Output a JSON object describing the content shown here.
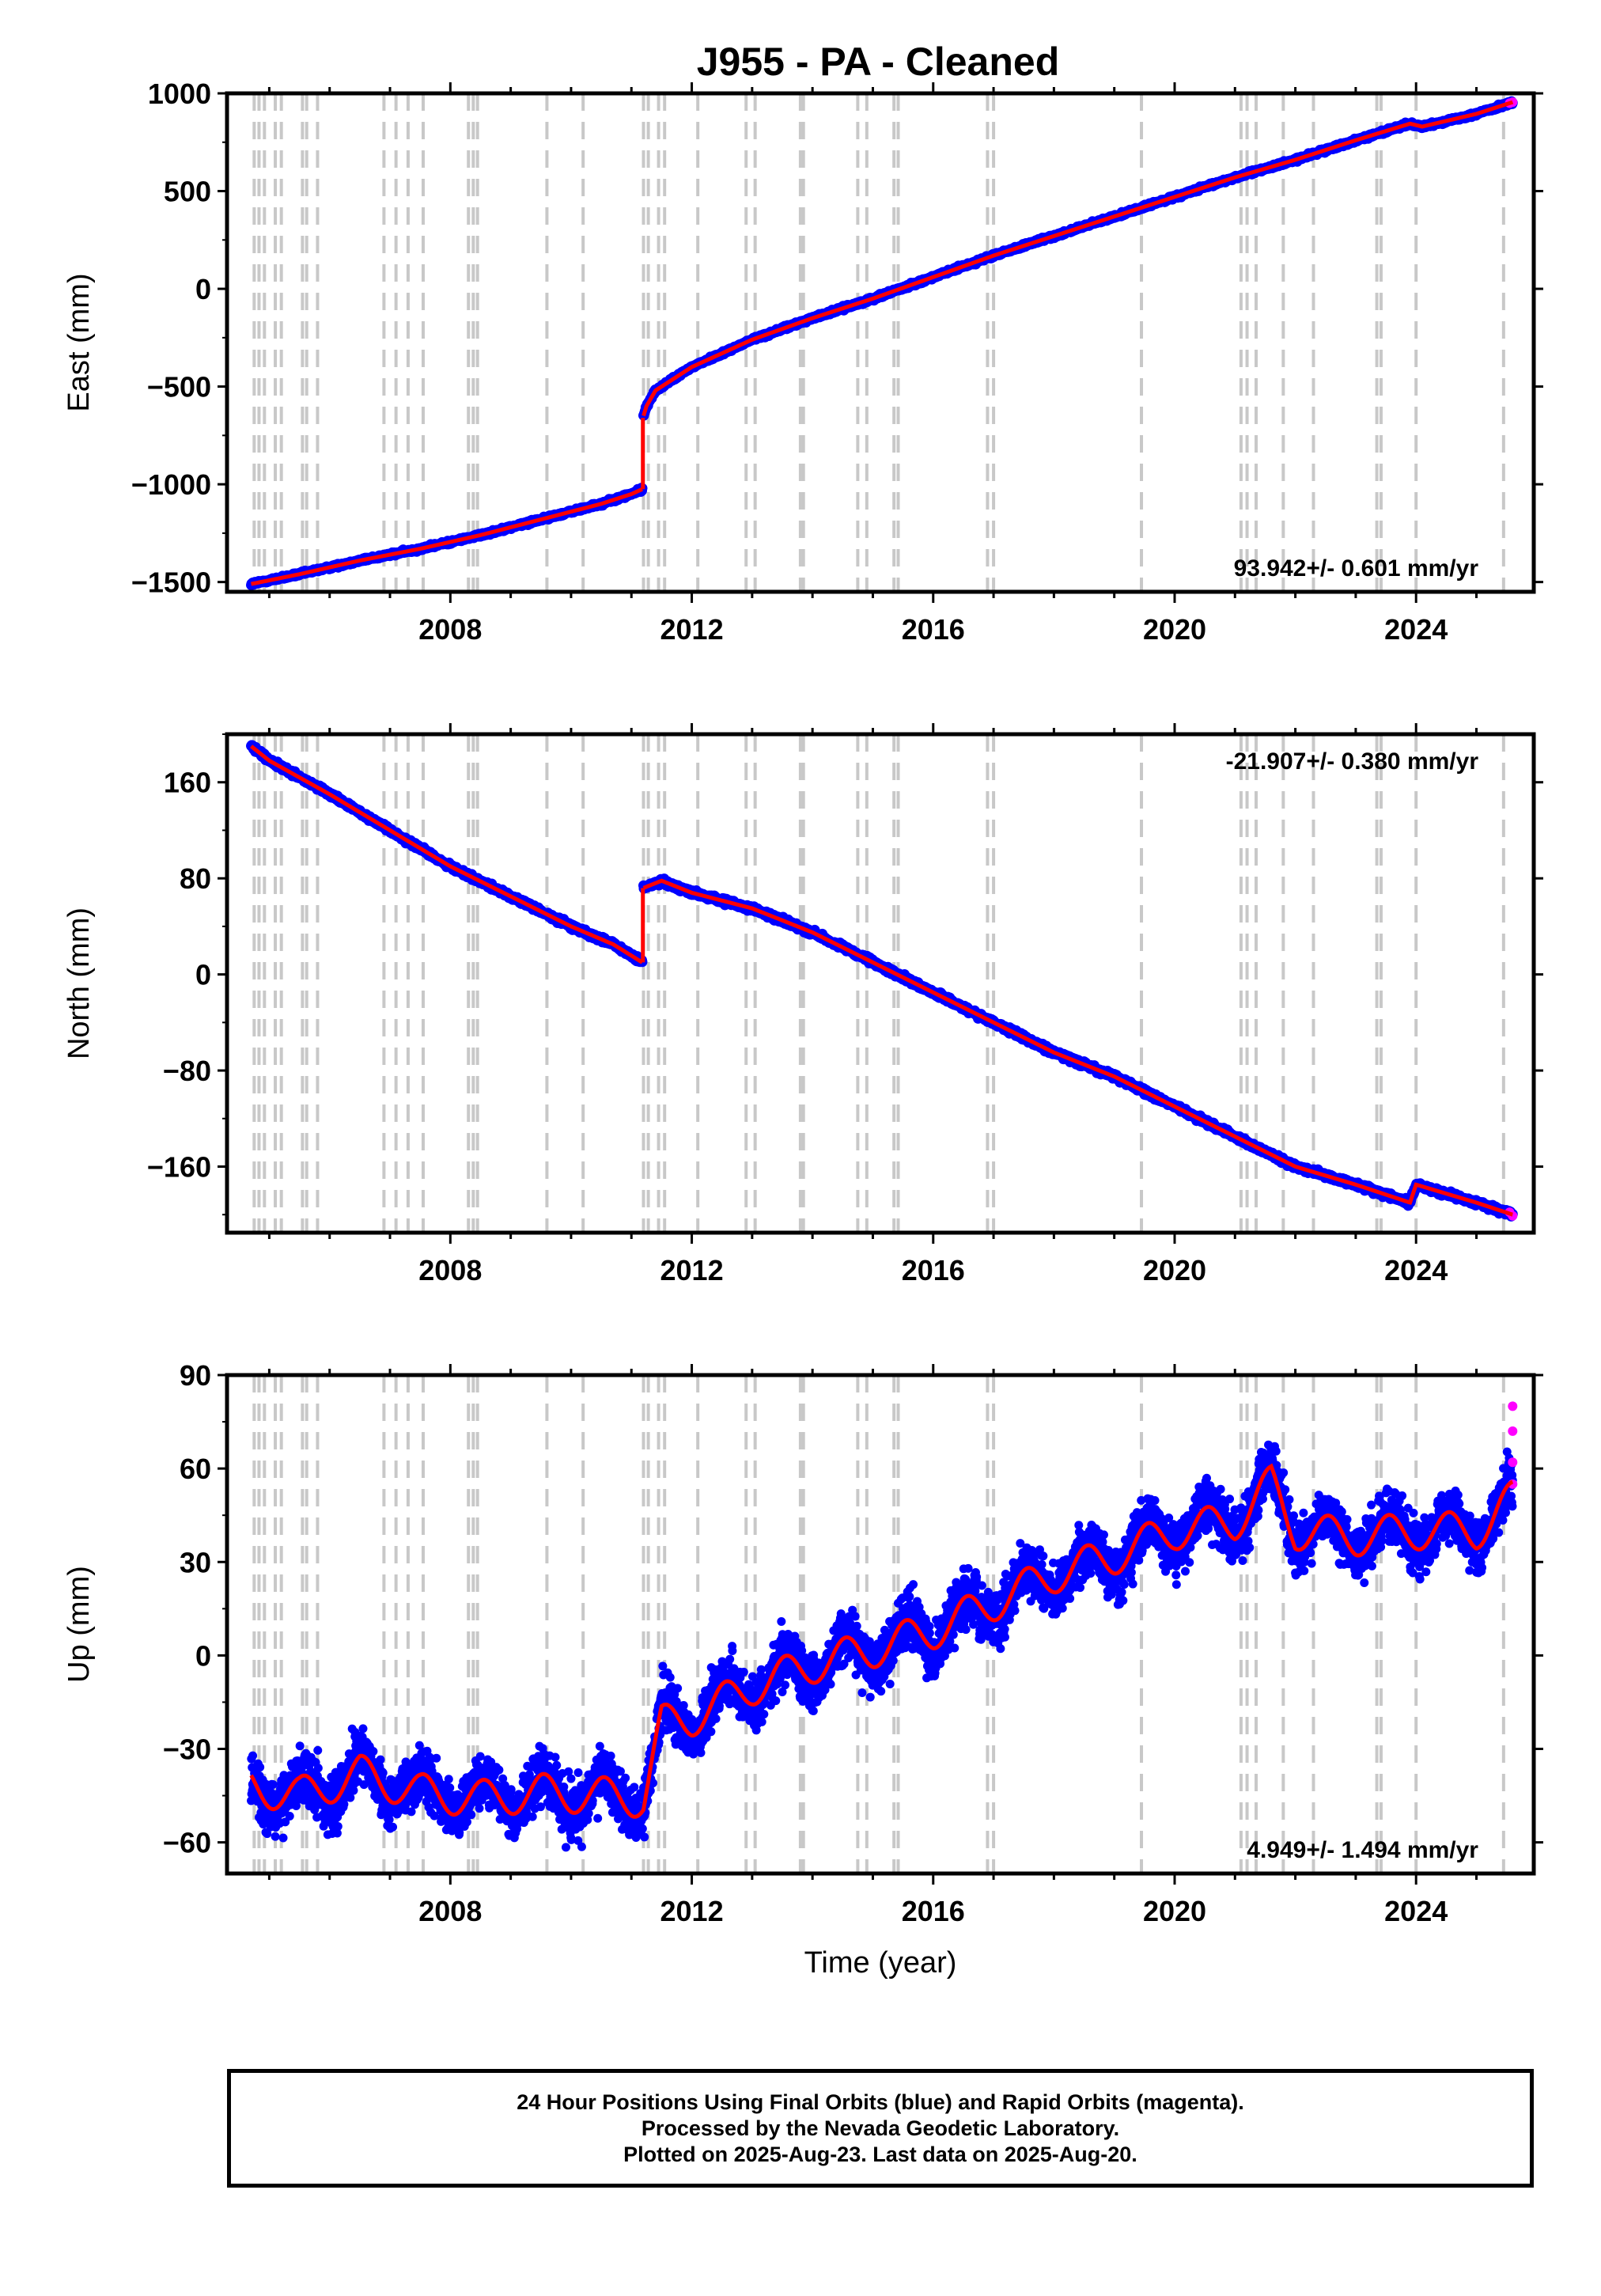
{
  "title": "J955  - PA - Cleaned",
  "colors": {
    "final_points": "#0000ff",
    "rapid_points": "#ff00ff",
    "model_line": "#ff0000",
    "event_lines": "#c8c8c8"
  },
  "chart_data": [
    {
      "type": "scatter",
      "panel": "east",
      "ylabel": "East (mm)",
      "xlim": [
        2004.3,
        2025.95
      ],
      "ylim": [
        -1550,
        1000
      ],
      "yticks": [
        -1500,
        -1000,
        -500,
        0,
        500,
        1000
      ],
      "xticks": [
        2008,
        2012,
        2016,
        2020,
        2024
      ],
      "rate_label": "93.942+/- 0.601 mm/yr",
      "rate_position": "bottom-right",
      "series": [
        {
          "role": "final",
          "x": [
            2004.7,
            2005.5,
            2006.5,
            2007.5,
            2008.5,
            2009.5,
            2010.5,
            2011.0,
            2011.18
          ],
          "y": [
            -1510,
            -1460,
            -1390,
            -1330,
            -1260,
            -1180,
            -1100,
            -1050,
            -1025
          ]
        },
        {
          "role": "final",
          "x": [
            2011.2,
            2011.25,
            2011.4,
            2011.7,
            2012.0,
            2012.5,
            2013.0,
            2014.0,
            2015.0,
            2016.0,
            2017.0,
            2018.0,
            2019.0,
            2020.0,
            2021.0,
            2022.0,
            2023.0,
            2023.9,
            2024.1,
            2025.0,
            2025.6
          ],
          "y": [
            -650,
            -600,
            -520,
            -460,
            -400,
            -330,
            -260,
            -150,
            -50,
            60,
            170,
            270,
            370,
            470,
            570,
            660,
            760,
            845,
            830,
            895,
            955
          ]
        },
        {
          "role": "rapid",
          "x": [
            2025.55,
            2025.6
          ],
          "y": [
            950,
            955
          ]
        }
      ],
      "offset": {
        "x": 2011.19,
        "from": -1025,
        "to": -660
      }
    },
    {
      "type": "scatter",
      "panel": "north",
      "ylabel": "North (mm)",
      "xlim": [
        2004.3,
        2025.95
      ],
      "ylim": [
        -215,
        200
      ],
      "yticks": [
        -160,
        -80,
        0,
        80,
        160
      ],
      "xticks": [
        2008,
        2012,
        2016,
        2020,
        2024
      ],
      "rate_label": "-21.907+/- 0.380 mm/yr",
      "rate_position": "top-right",
      "series": [
        {
          "role": "final",
          "x": [
            2004.7,
            2005.0,
            2006.0,
            2007.0,
            2008.0,
            2009.0,
            2010.0,
            2010.7,
            2011.18
          ],
          "y": [
            190,
            178,
            150,
            120,
            90,
            65,
            40,
            25,
            10
          ]
        },
        {
          "role": "final",
          "x": [
            2011.2,
            2011.5,
            2012.0,
            2013.0,
            2014.0,
            2015.0,
            2016.0,
            2017.0,
            2018.0,
            2019.0,
            2020.0,
            2021.0,
            2022.0,
            2023.0,
            2023.9,
            2024.0,
            2025.0,
            2025.6
          ],
          "y": [
            72,
            78,
            68,
            55,
            35,
            10,
            -15,
            -40,
            -65,
            -85,
            -110,
            -135,
            -160,
            -175,
            -190,
            -175,
            -190,
            -200
          ]
        },
        {
          "role": "rapid",
          "x": [
            2025.55,
            2025.6
          ],
          "y": [
            -198,
            -201
          ]
        }
      ],
      "offset": {
        "x": 2011.19,
        "from": 10,
        "to": 72
      }
    },
    {
      "type": "scatter",
      "panel": "up",
      "ylabel": "Up (mm)",
      "xlabel": "Time (year)",
      "xlim": [
        2004.3,
        2025.95
      ],
      "ylim": [
        -70,
        90
      ],
      "yticks": [
        -60,
        -30,
        0,
        30,
        60,
        90
      ],
      "xticks": [
        2008,
        2012,
        2016,
        2020,
        2024
      ],
      "rate_label": "4.949+/- 1.494 mm/yr",
      "rate_position": "bottom-right",
      "series": [
        {
          "role": "final",
          "x": [
            2004.7,
            2005.5,
            2006.5,
            2007.5,
            2008.5,
            2009.5,
            2010.5,
            2011.2,
            2011.5,
            2012.0,
            2013.0,
            2014.0,
            2015.0,
            2016.0,
            2017.0,
            2018.0,
            2019.0,
            2020.0,
            2021.0,
            2021.6,
            2022.0,
            2023.0,
            2024.0,
            2025.0,
            2025.6
          ],
          "y": [
            -42,
            -45,
            -38,
            -44,
            -46,
            -44,
            -45,
            -46,
            -22,
            -20,
            -10,
            -3,
            2,
            8,
            17,
            26,
            32,
            40,
            43,
            55,
            40,
            38,
            40,
            40,
            50
          ]
        },
        {
          "role": "rapid",
          "x": [
            2025.6,
            2025.6,
            2025.6,
            2025.6
          ],
          "y": [
            55,
            62,
            72,
            80
          ]
        }
      ],
      "annual_amplitude": 6
    }
  ],
  "event_lines": [
    2004.75,
    2004.83,
    2004.92,
    2005.1,
    2005.2,
    2005.55,
    2005.62,
    2005.8,
    2006.9,
    2007.1,
    2007.3,
    2007.55,
    2008.3,
    2008.38,
    2008.45,
    2009.6,
    2010.2,
    2011.2,
    2011.28,
    2011.45,
    2011.55,
    2012.1,
    2012.9,
    2013.05,
    2013.8,
    2013.85,
    2014.75,
    2014.9,
    2015.35,
    2015.42,
    2016.9,
    2017.0,
    2019.45,
    2021.1,
    2021.2,
    2021.35,
    2021.8,
    2022.3,
    2023.35,
    2023.42,
    2024.0,
    2025.45
  ],
  "footer": {
    "line1": "24 Hour Positions Using Final Orbits (blue) and Rapid Orbits (magenta).",
    "line2": "Processed by the Nevada Geodetic Laboratory.",
    "line3": "Plotted on 2025-Aug-23. Last data on 2025-Aug-20."
  }
}
